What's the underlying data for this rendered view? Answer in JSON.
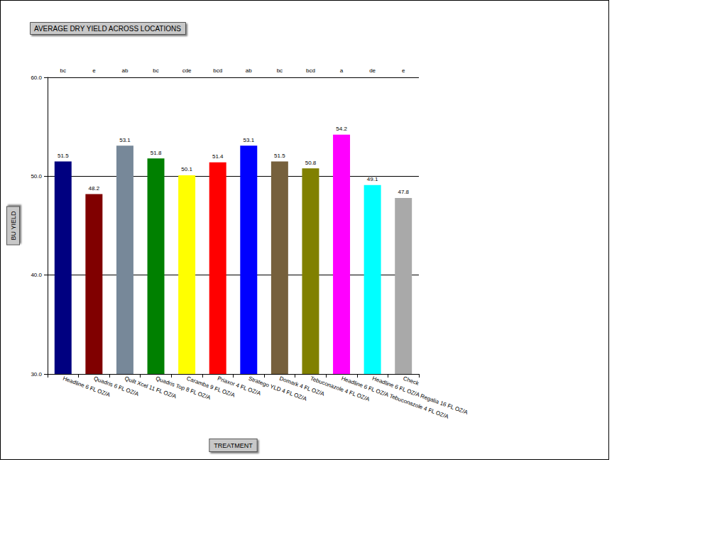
{
  "chart_data": {
    "type": "bar",
    "title": "AVERAGE DRY YIELD ACROSS LOCATIONS",
    "x_label": "TREATMENT",
    "y_label": "BU YIELD",
    "categories": [
      "Headline 6 FL OZ/A",
      "Quadris 6 FL OZ/A",
      "Quilt Xcel 11 FL OZ/A",
      "Quadris Top 8 FL OZ/A",
      "Caramba 9 FL OZ/A",
      "Priaxor 4 FL OZ/A",
      "Stratego YLD 4 FL OZ/A",
      "Domark 4 FL OZ/A",
      "Tebuconazole 4 FL OZ/A",
      "Headline 6 FL OZ/A Tebuconazole 4 FL OZ/A",
      "Headline 6 FL OZ/A Regalia 16 FL OZ/A",
      "Check"
    ],
    "values": [
      51.5,
      48.2,
      53.1,
      51.8,
      50.1,
      51.4,
      53.1,
      51.5,
      50.8,
      54.2,
      49.1,
      47.8
    ],
    "colors": [
      "#000080",
      "#800000",
      "#778899",
      "#008000",
      "#ffff00",
      "#ff0000",
      "#0000ff",
      "#76603c",
      "#808000",
      "#ff00ff",
      "#00ffff",
      "#a9a9a9"
    ],
    "groups": [
      "bc",
      "e",
      "ab",
      "bc",
      "cde",
      "bcd",
      "ab",
      "bc",
      "bcd",
      "a",
      "de",
      "e"
    ],
    "ylim": [
      30,
      60
    ],
    "yticks": [
      {
        "value": 30,
        "label": "30.0"
      },
      {
        "value": 40,
        "label": "40.0"
      },
      {
        "value": 50,
        "label": "50.0"
      },
      {
        "value": 60,
        "label": "60.0"
      }
    ],
    "grid": true,
    "data_labels": true
  }
}
